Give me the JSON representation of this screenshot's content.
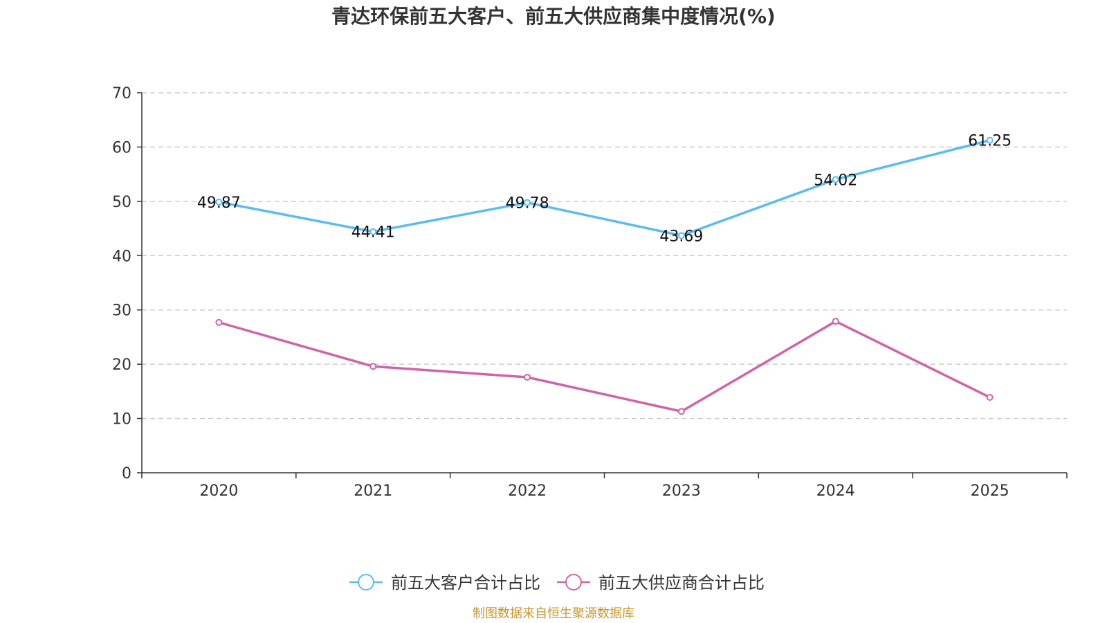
{
  "chart_data": {
    "type": "line",
    "title": "青达环保前五大客户、前五大供应商集中度情况(%)",
    "categories": [
      "2020",
      "2021",
      "2022",
      "2023",
      "2024",
      "2025"
    ],
    "ylim": [
      0,
      70
    ],
    "yticks": [
      "0",
      "10",
      "20",
      "30",
      "40",
      "50",
      "60",
      "70"
    ],
    "grid": true,
    "legend_position": "bottom-center",
    "series": [
      {
        "name": "前五大客户合计占比",
        "color": "#5bbcf0",
        "values": [
          49.87,
          44.41,
          49.78,
          43.69,
          54.02,
          61.25
        ],
        "labels": [
          "49.87",
          "44.41",
          "49.78",
          "43.69",
          "54.02",
          "61.25"
        ]
      },
      {
        "name": "前五大供应商合计占比",
        "color": "#d063a9",
        "values": [
          27.7,
          19.6,
          17.6,
          11.3,
          27.9,
          13.9
        ]
      }
    ]
  },
  "source_text": "制图数据来自恒生聚源数据库"
}
